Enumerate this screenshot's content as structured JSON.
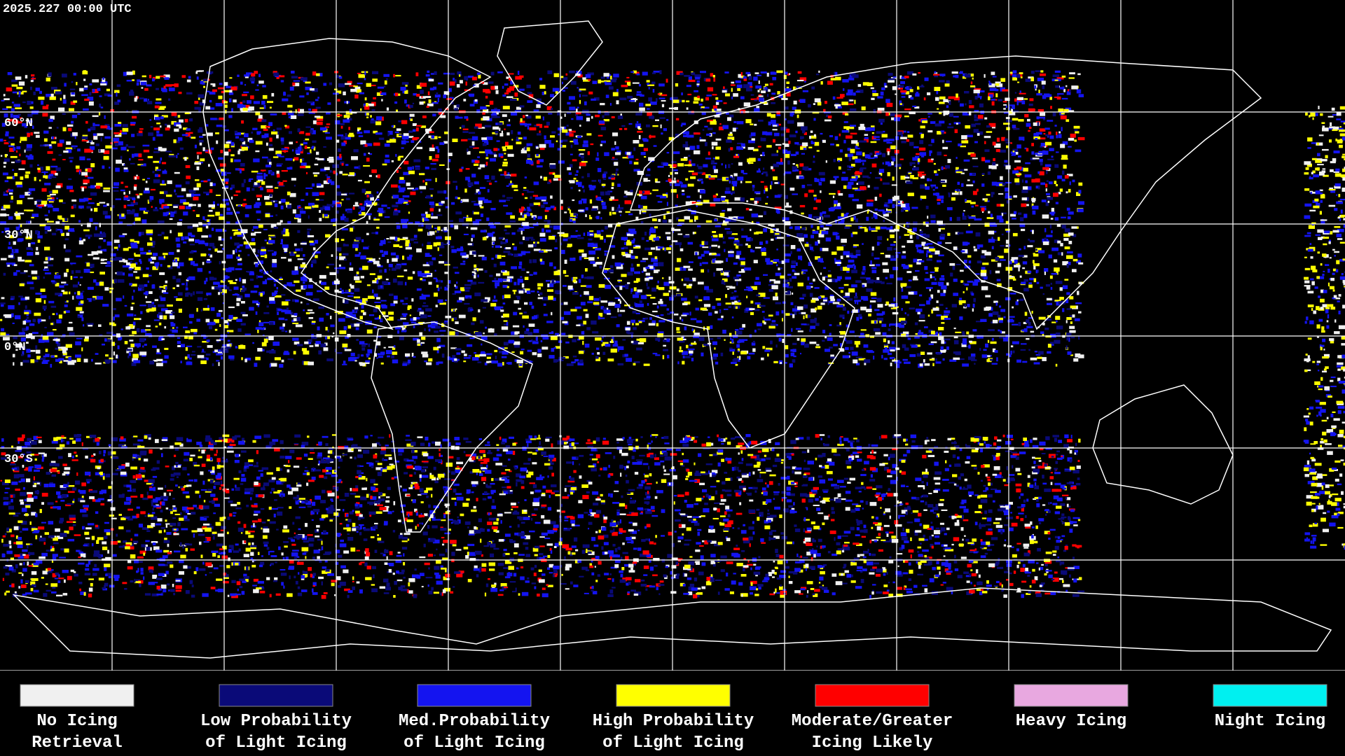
{
  "header": {
    "timestamp": "2025.227 00:00 UTC"
  },
  "map": {
    "latitude_labels": [
      "60°N",
      "30°N",
      "0°N",
      "30°S"
    ]
  },
  "legend": {
    "items": [
      {
        "lines": [
          "No Icing",
          "Retrieval"
        ],
        "color": "#f0f0f0"
      },
      {
        "lines": [
          "Low Probability",
          "of Light Icing"
        ],
        "color": "#0a0a78"
      },
      {
        "lines": [
          "Med.Probability",
          "of Light Icing"
        ],
        "color": "#1414f0"
      },
      {
        "lines": [
          "High Probability",
          "of Light Icing"
        ],
        "color": "#ffff00"
      },
      {
        "lines": [
          "Moderate/Greater",
          "Icing Likely"
        ],
        "color": "#ff0000"
      },
      {
        "lines": [
          "Heavy Icing"
        ],
        "color": "#e8a8e0"
      },
      {
        "lines": [
          "Night Icing"
        ],
        "color": "#00f0f0"
      }
    ]
  }
}
